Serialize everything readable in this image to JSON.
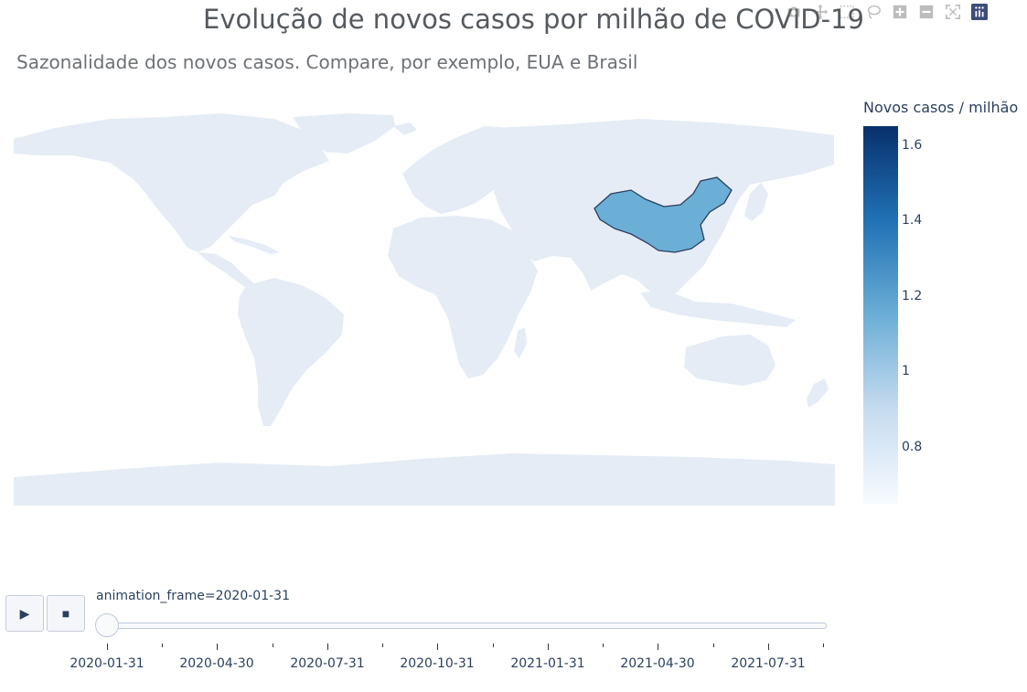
{
  "title": "Evolução de novos casos por milhão de COVID-19",
  "subtitle": "Sazonalidade dos novos casos. Compare, por exemplo, EUA e Brasil",
  "modebar": [
    {
      "name": "camera-icon",
      "label": "Download plot as a png"
    },
    {
      "name": "pan-icon",
      "label": "Pan"
    },
    {
      "name": "box-select-icon",
      "label": "Box Select"
    },
    {
      "name": "lasso-select-icon",
      "label": "Lasso Select"
    },
    {
      "name": "zoom-in-icon",
      "label": "Zoom in"
    },
    {
      "name": "zoom-out-icon",
      "label": "Zoom out"
    },
    {
      "name": "reset-view-icon",
      "label": "Reset view"
    },
    {
      "name": "plotly-logo-icon",
      "label": "Produced with Plotly"
    }
  ],
  "colorbar": {
    "title": "Novos casos / milhão",
    "min": 0.65,
    "max": 1.65,
    "ticks": [
      "1.6",
      "1.4",
      "1.2",
      "1",
      "0.8"
    ],
    "colorscale": [
      "#08306b",
      "#2171b5",
      "#6baed6",
      "#c6dbef",
      "#f7fbff"
    ]
  },
  "map": {
    "land_color": "#e5ecf6",
    "border_color": "#2a3f5f",
    "highlighted_country": {
      "name": "China",
      "value": 1.15,
      "fill": "#6baed6"
    }
  },
  "animation": {
    "play_icon": "▶",
    "stop_icon": "■",
    "current_label": "animation_frame=2020-01-31",
    "current_index": 0,
    "slider_labels": [
      "2020-01-31",
      "2020-04-30",
      "2020-07-31",
      "2020-10-31",
      "2021-01-31",
      "2021-04-30",
      "2021-07-31"
    ]
  }
}
